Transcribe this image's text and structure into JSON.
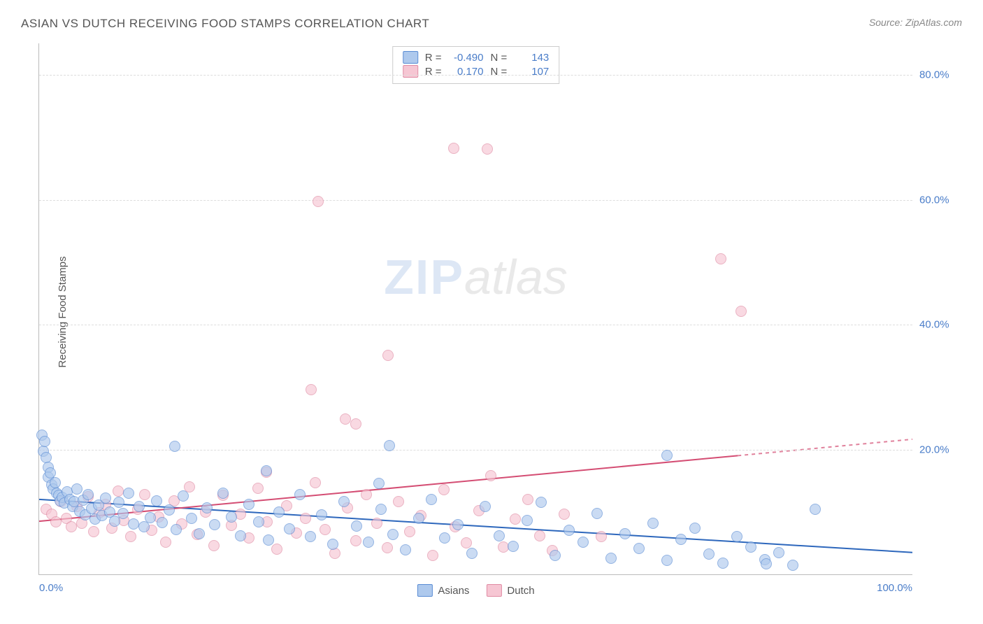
{
  "title": "ASIAN VS DUTCH RECEIVING FOOD STAMPS CORRELATION CHART",
  "source": "Source: ZipAtlas.com",
  "ylabel": "Receiving Food Stamps",
  "watermark": {
    "part1": "ZIP",
    "part2": "atlas"
  },
  "chart": {
    "type": "scatter",
    "background_color": "#ffffff",
    "grid_color": "#dddddd",
    "axis_color": "#bbbbbb",
    "xlim": [
      0,
      100
    ],
    "ylim": [
      0,
      85
    ],
    "xtick_labels": [
      "0.0%",
      "100.0%"
    ],
    "ytick_step": 20,
    "ytick_labels": [
      "20.0%",
      "40.0%",
      "60.0%",
      "80.0%"
    ],
    "tick_color": "#4a7dc9",
    "tick_fontsize": 15,
    "marker_size": 16,
    "marker_opacity": 0.65,
    "trend_line_width": 2,
    "series": [
      {
        "name": "Asians",
        "fill_color": "#aec9ed",
        "stroke_color": "#5a8cd4",
        "trend_color": "#2d67bc",
        "trend": {
          "x1": 0,
          "y1": 12.0,
          "x2": 100,
          "y2": 3.5,
          "dash_after_x": 100
        },
        "stats": {
          "R": "-0.490",
          "N": "143"
        },
        "points": [
          [
            0.3,
            22.3
          ],
          [
            0.5,
            19.7
          ],
          [
            0.6,
            21.3
          ],
          [
            0.8,
            18.7
          ],
          [
            1.0,
            17.1
          ],
          [
            1.0,
            15.5
          ],
          [
            1.3,
            16.2
          ],
          [
            1.4,
            14.3
          ],
          [
            1.6,
            13.6
          ],
          [
            1.8,
            14.7
          ],
          [
            2.0,
            13.0
          ],
          [
            2.2,
            12.6
          ],
          [
            2.4,
            11.7
          ],
          [
            2.6,
            12.3
          ],
          [
            2.9,
            11.4
          ],
          [
            3.2,
            13.2
          ],
          [
            3.5,
            12.0
          ],
          [
            3.8,
            10.8
          ],
          [
            4.0,
            11.6
          ],
          [
            4.3,
            13.6
          ],
          [
            4.6,
            10.1
          ],
          [
            5.0,
            11.9
          ],
          [
            5.3,
            9.5
          ],
          [
            5.6,
            12.7
          ],
          [
            6.0,
            10.5
          ],
          [
            6.4,
            8.8
          ],
          [
            6.8,
            11.1
          ],
          [
            7.2,
            9.4
          ],
          [
            7.6,
            12.2
          ],
          [
            8.1,
            10.0
          ],
          [
            8.6,
            8.5
          ],
          [
            9.1,
            11.5
          ],
          [
            9.6,
            9.7
          ],
          [
            10.2,
            13.0
          ],
          [
            10.8,
            8.0
          ],
          [
            11.4,
            10.8
          ],
          [
            12.0,
            7.6
          ],
          [
            12.7,
            9.1
          ],
          [
            13.4,
            11.8
          ],
          [
            14.1,
            8.3
          ],
          [
            14.9,
            10.3
          ],
          [
            15.5,
            20.5
          ],
          [
            15.7,
            7.2
          ],
          [
            16.5,
            12.5
          ],
          [
            17.4,
            8.9
          ],
          [
            18.3,
            6.5
          ],
          [
            19.2,
            10.6
          ],
          [
            20.1,
            7.9
          ],
          [
            21.0,
            13.0
          ],
          [
            22.0,
            9.2
          ],
          [
            23.0,
            6.1
          ],
          [
            24.0,
            11.2
          ],
          [
            25.1,
            8.4
          ],
          [
            26.0,
            16.6
          ],
          [
            26.2,
            5.5
          ],
          [
            27.4,
            10.0
          ],
          [
            28.6,
            7.3
          ],
          [
            29.8,
            12.8
          ],
          [
            31.0,
            6.0
          ],
          [
            32.3,
            9.5
          ],
          [
            33.6,
            4.8
          ],
          [
            34.9,
            11.6
          ],
          [
            36.3,
            7.7
          ],
          [
            37.7,
            5.2
          ],
          [
            38.9,
            14.5
          ],
          [
            39.1,
            10.4
          ],
          [
            40.1,
            20.6
          ],
          [
            40.5,
            6.4
          ],
          [
            41.9,
            3.9
          ],
          [
            43.4,
            9.0
          ],
          [
            44.9,
            12.0
          ],
          [
            46.4,
            5.8
          ],
          [
            47.9,
            7.9
          ],
          [
            49.5,
            3.4
          ],
          [
            51.0,
            10.8
          ],
          [
            52.6,
            6.1
          ],
          [
            54.2,
            4.5
          ],
          [
            55.8,
            8.6
          ],
          [
            57.4,
            11.5
          ],
          [
            59.0,
            3.0
          ],
          [
            60.6,
            7.0
          ],
          [
            62.2,
            5.1
          ],
          [
            63.8,
            9.7
          ],
          [
            65.4,
            2.6
          ],
          [
            67.0,
            6.5
          ],
          [
            68.6,
            4.1
          ],
          [
            70.2,
            8.2
          ],
          [
            71.8,
            19.0
          ],
          [
            71.8,
            2.2
          ],
          [
            73.4,
            5.6
          ],
          [
            75.0,
            7.4
          ],
          [
            76.6,
            3.3
          ],
          [
            78.2,
            1.8
          ],
          [
            79.8,
            6.0
          ],
          [
            81.4,
            4.4
          ],
          [
            83.0,
            2.4
          ],
          [
            83.2,
            1.7
          ],
          [
            84.6,
            3.5
          ],
          [
            86.2,
            1.4
          ],
          [
            88.8,
            10.4
          ]
        ]
      },
      {
        "name": "Dutch",
        "fill_color": "#f6c6d3",
        "stroke_color": "#e08aa3",
        "trend_color": "#d44d73",
        "trend": {
          "x1": 0,
          "y1": 8.5,
          "x2": 80,
          "y2": 19.0,
          "dash_after_x": 80
        },
        "stats": {
          "R": "0.170",
          "N": "107"
        },
        "points": [
          [
            0.8,
            10.4
          ],
          [
            1.4,
            9.6
          ],
          [
            1.9,
            8.4
          ],
          [
            2.5,
            11.6
          ],
          [
            3.1,
            9.0
          ],
          [
            3.7,
            7.6
          ],
          [
            4.3,
            10.8
          ],
          [
            4.9,
            8.2
          ],
          [
            5.6,
            12.4
          ],
          [
            6.2,
            6.8
          ],
          [
            6.9,
            9.8
          ],
          [
            7.6,
            11.2
          ],
          [
            8.3,
            7.4
          ],
          [
            9.0,
            13.3
          ],
          [
            9.7,
            8.6
          ],
          [
            10.5,
            6.0
          ],
          [
            11.3,
            10.4
          ],
          [
            12.1,
            12.8
          ],
          [
            12.9,
            7.0
          ],
          [
            13.7,
            9.2
          ],
          [
            14.5,
            5.2
          ],
          [
            15.4,
            11.8
          ],
          [
            16.3,
            8.0
          ],
          [
            17.2,
            14.0
          ],
          [
            18.1,
            6.4
          ],
          [
            19.0,
            10.0
          ],
          [
            20.0,
            4.6
          ],
          [
            21.0,
            12.6
          ],
          [
            22.0,
            7.8
          ],
          [
            23.0,
            9.6
          ],
          [
            24.0,
            5.8
          ],
          [
            25.0,
            13.8
          ],
          [
            26.0,
            16.3
          ],
          [
            26.1,
            8.4
          ],
          [
            27.2,
            4.0
          ],
          [
            28.3,
            11.0
          ],
          [
            29.4,
            6.6
          ],
          [
            30.5,
            9.0
          ],
          [
            31.1,
            29.5
          ],
          [
            31.6,
            14.7
          ],
          [
            31.9,
            59.6
          ],
          [
            32.7,
            7.2
          ],
          [
            33.8,
            3.4
          ],
          [
            35.0,
            24.8
          ],
          [
            35.3,
            10.6
          ],
          [
            36.2,
            24.0
          ],
          [
            36.2,
            5.4
          ],
          [
            37.4,
            12.8
          ],
          [
            38.6,
            8.2
          ],
          [
            39.8,
            4.2
          ],
          [
            39.9,
            35.0
          ],
          [
            41.1,
            11.6
          ],
          [
            42.4,
            6.8
          ],
          [
            43.7,
            9.4
          ],
          [
            45.0,
            3.0
          ],
          [
            46.3,
            13.5
          ],
          [
            47.4,
            68.1
          ],
          [
            47.6,
            7.6
          ],
          [
            48.9,
            5.0
          ],
          [
            50.3,
            10.2
          ],
          [
            51.3,
            68.0
          ],
          [
            51.7,
            15.8
          ],
          [
            53.1,
            4.4
          ],
          [
            54.5,
            8.8
          ],
          [
            55.9,
            12.0
          ],
          [
            57.3,
            6.2
          ],
          [
            58.7,
            3.8
          ],
          [
            60.1,
            9.6
          ],
          [
            64.3,
            6.0
          ],
          [
            78.0,
            50.4
          ],
          [
            80.3,
            42.0
          ]
        ]
      }
    ]
  },
  "stats_box": {
    "rows": [
      {
        "swatch_class": "s1",
        "R_label": "R =",
        "R_value": "-0.490",
        "N_label": "N =",
        "N_value": "143"
      },
      {
        "swatch_class": "s2",
        "R_label": "R =",
        "R_value": "0.170",
        "N_label": "N =",
        "N_value": "107"
      }
    ]
  },
  "legend": {
    "items": [
      {
        "swatch_class": "s1",
        "label": "Asians"
      },
      {
        "swatch_class": "s2",
        "label": "Dutch"
      }
    ]
  }
}
